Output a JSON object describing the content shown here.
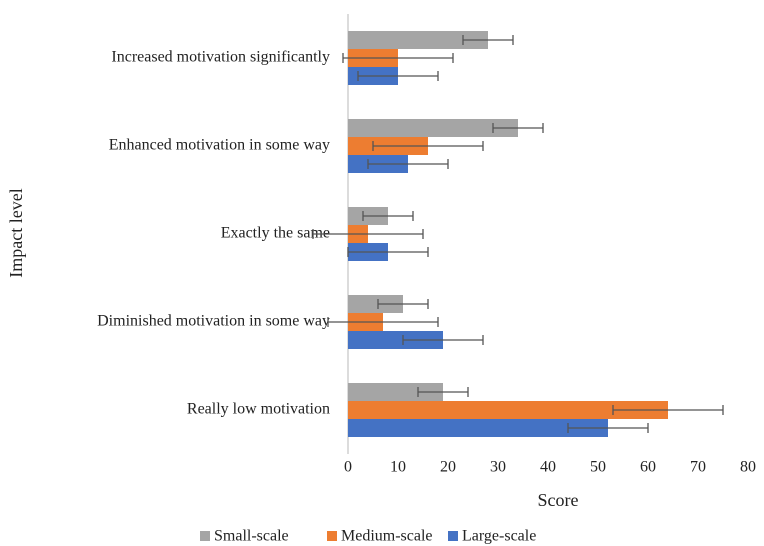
{
  "chart_data": {
    "type": "hbar",
    "xlabel": "Score",
    "ylabel": "Impact level",
    "categories": [
      "Increased motivation significantly",
      "Enhanced motivation in some way",
      "Exactly the same",
      "Diminished motivation in some way",
      "Really low motivation"
    ],
    "series": [
      {
        "name": "Small-scale",
        "color": "#a5a5a5",
        "values": [
          28,
          34,
          8,
          11,
          19
        ],
        "errors": [
          5,
          5,
          5,
          5,
          5
        ]
      },
      {
        "name": "Medium-scale",
        "color": "#ed7d31",
        "values": [
          10,
          16,
          4,
          7,
          64
        ],
        "errors": [
          11,
          11,
          11,
          11,
          11
        ]
      },
      {
        "name": "Large-scale",
        "color": "#4472c4",
        "values": [
          10,
          12,
          8,
          19,
          52
        ],
        "errors": [
          8,
          8,
          8,
          8,
          8
        ]
      }
    ],
    "xlim": [
      0,
      80
    ],
    "xticks": [
      0,
      10,
      20,
      30,
      40,
      50,
      60,
      70,
      80
    ],
    "grid": false,
    "legend": "bottom"
  }
}
